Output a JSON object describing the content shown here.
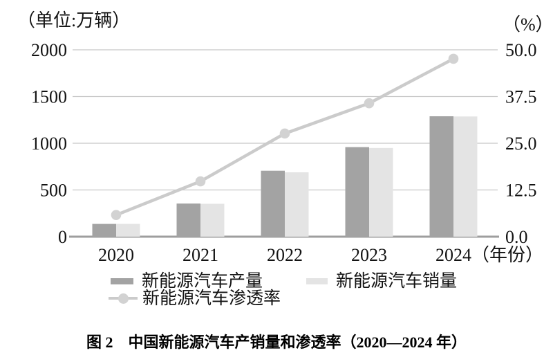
{
  "figure": {
    "caption": "图 2　中国新能源汽车产销量和渗透率（2020—2024 年）"
  },
  "colors": {
    "production_bar": "#a3a3a3",
    "sales_bar": "#e4e4e4",
    "line": "#cbcbcb",
    "marker": "#d2d2d2",
    "gridline": "#c7c7c7",
    "axis_line": "#9e9e9e",
    "text": "#131313"
  },
  "chart_data": {
    "type": "bar",
    "subtype": "grouped-bars-with-line-overlay",
    "title": "中国新能源汽车产销量和渗透率（2020—2024 年）",
    "categories": [
      "2020",
      "2021",
      "2022",
      "2023",
      "2024"
    ],
    "series": [
      {
        "name": "新能源汽车产量",
        "type": "bar",
        "axis": "left",
        "values": [
          136.6,
          354.5,
          705.8,
          958.7,
          1288.8
        ]
      },
      {
        "name": "新能源汽车销量",
        "type": "bar",
        "axis": "left",
        "values": [
          136.7,
          352.1,
          688.7,
          949.5,
          1286.6
        ]
      },
      {
        "name": "新能源汽车渗透率",
        "type": "line",
        "axis": "right",
        "values": [
          5.8,
          14.8,
          27.6,
          35.7,
          47.6
        ]
      }
    ],
    "left_axis": {
      "label": "（单位:万辆）",
      "range": [
        0,
        2000
      ],
      "ticks": [
        0,
        500,
        1000,
        1500,
        2000
      ],
      "tick_labels": [
        "0",
        "500",
        "1000",
        "1500",
        "2000"
      ]
    },
    "right_axis": {
      "label": "（%）",
      "range": [
        0,
        50
      ],
      "ticks": [
        0,
        12.5,
        25,
        37.5,
        50
      ],
      "tick_labels": [
        "0.0",
        "12.5",
        "25.0",
        "37.5",
        "50.0"
      ]
    },
    "x_label_suffix": "（年份）",
    "grid": true,
    "legend_position": "bottom"
  }
}
